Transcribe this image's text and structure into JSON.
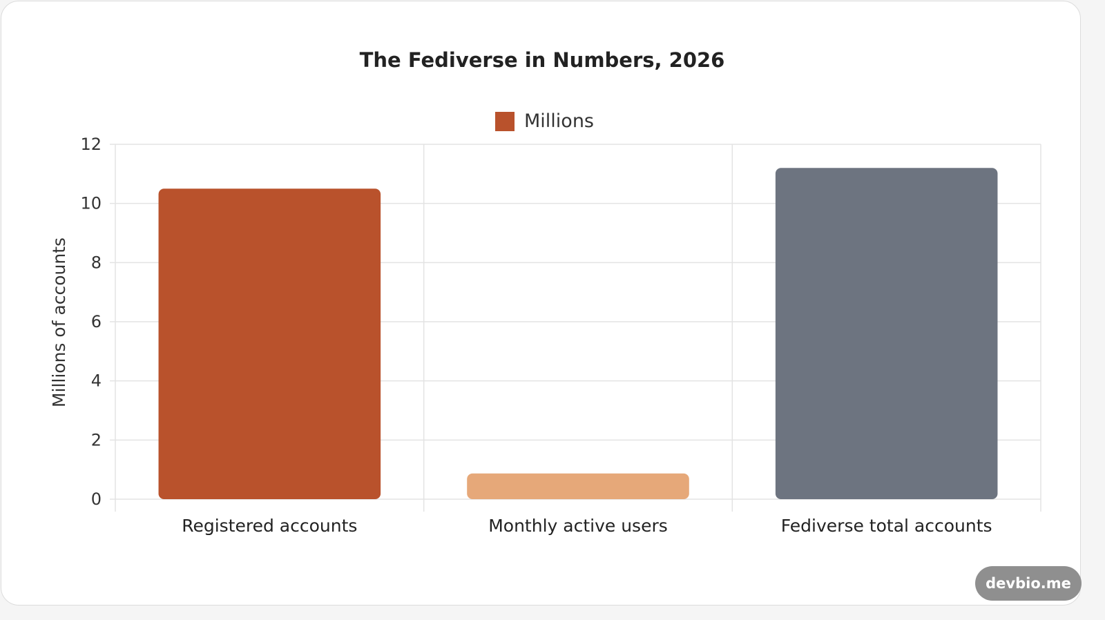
{
  "watermark": "devbio.me",
  "chart_data": {
    "type": "bar",
    "title": "The Fediverse in Numbers, 2026",
    "xlabel": "",
    "ylabel": "Millions of accounts",
    "categories": [
      "Registered accounts",
      "Monthly active users",
      "Fediverse total accounts"
    ],
    "series": [
      {
        "name": "Millions",
        "values": [
          10.5,
          0.87,
          11.2
        ],
        "colors": [
          "#b9522c",
          "#e6a879",
          "#6d7480"
        ]
      }
    ],
    "legend_color": "#b9522c",
    "ylim": [
      0,
      12
    ],
    "yticks": [
      0,
      2,
      4,
      6,
      8,
      10,
      12
    ],
    "grid": true,
    "legend_position": "top"
  }
}
